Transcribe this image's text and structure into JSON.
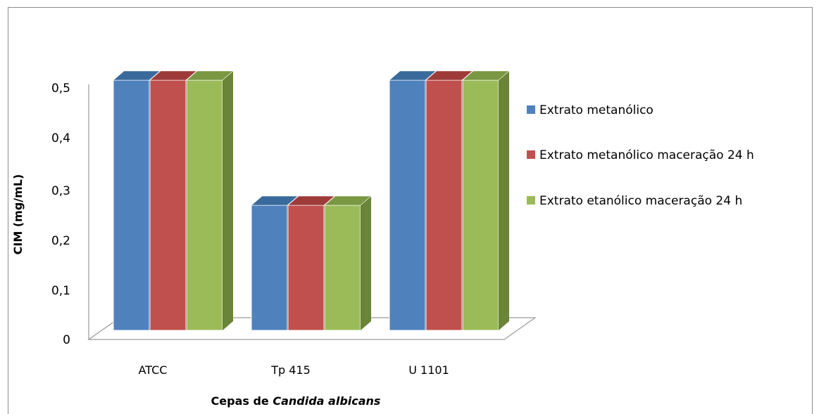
{
  "chart_data": {
    "type": "bar",
    "style": "3d-clustered-column",
    "categories": [
      "ATCC",
      "Tp 415",
      "U 1101"
    ],
    "series": [
      {
        "name": "Extrato metanólico",
        "values": [
          0.5,
          0.25,
          0.5
        ],
        "color": "#4f81bd",
        "side_color": "#2e5f8f",
        "top_color": "#3a6a9c"
      },
      {
        "name": "Extrato metanólico maceração 24 h",
        "values": [
          0.5,
          0.25,
          0.5
        ],
        "color": "#c0504d",
        "side_color": "#8c3331",
        "top_color": "#9e3b39"
      },
      {
        "name": "Extrato etanólico maceração 24 h",
        "values": [
          0.5,
          0.25,
          0.5
        ],
        "color": "#9bbb59",
        "side_color": "#6a8438",
        "top_color": "#7a9742"
      }
    ],
    "yticks": [
      "0",
      "0,1",
      "0,2",
      "0,3",
      "0,4",
      "0,5"
    ],
    "ylim": [
      0,
      0.5
    ],
    "ylabel": "CIM (mg/mL)",
    "xlabel_prefix": "Cepas de ",
    "xlabel_italic": "Candida albicans",
    "legend_position": "right",
    "grid": false
  }
}
